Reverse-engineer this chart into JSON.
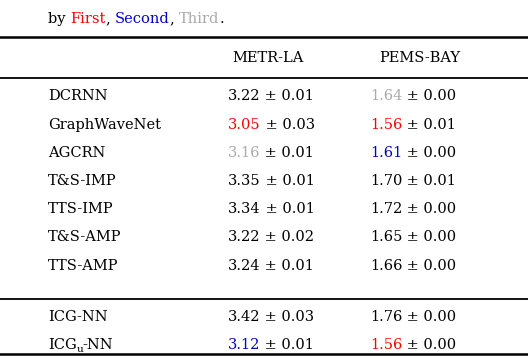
{
  "title_parts": [
    [
      "by ",
      "black"
    ],
    [
      "First",
      "#ff0000"
    ],
    [
      ", ",
      "black"
    ],
    [
      "Second",
      "#0000cc"
    ],
    [
      ", ",
      "black"
    ],
    [
      "Third",
      "#aaaaaa"
    ],
    [
      ".",
      "black"
    ]
  ],
  "col_headers": [
    "METR-LA",
    "PEMS-BAY"
  ],
  "rows": [
    {
      "label": "DCRNN",
      "label_sub": null,
      "metr_val": "3.22",
      "metr_pm": "0.01",
      "metr_color": "black",
      "pems_val": "1.64",
      "pems_pm": "0.00",
      "pems_color": "#aaaaaa",
      "group": 1
    },
    {
      "label": "GraphWaveNet",
      "label_sub": null,
      "metr_val": "3.05",
      "metr_pm": "0.03",
      "metr_color": "#ff0000",
      "pems_val": "1.56",
      "pems_pm": "0.01",
      "pems_color": "#ff0000",
      "group": 1
    },
    {
      "label": "AGCRN",
      "label_sub": null,
      "metr_val": "3.16",
      "metr_pm": "0.01",
      "metr_color": "#aaaaaa",
      "pems_val": "1.61",
      "pems_pm": "0.00",
      "pems_color": "#0000cc",
      "group": 1
    },
    {
      "label": "T&S-IMP",
      "label_sub": null,
      "metr_val": "3.35",
      "metr_pm": "0.01",
      "metr_color": "black",
      "pems_val": "1.70",
      "pems_pm": "0.01",
      "pems_color": "black",
      "group": 1
    },
    {
      "label": "TTS-IMP",
      "label_sub": null,
      "metr_val": "3.34",
      "metr_pm": "0.01",
      "metr_color": "black",
      "pems_val": "1.72",
      "pems_pm": "0.00",
      "pems_color": "black",
      "group": 1
    },
    {
      "label": "T&S-AMP",
      "label_sub": null,
      "metr_val": "3.22",
      "metr_pm": "0.02",
      "metr_color": "black",
      "pems_val": "1.65",
      "pems_pm": "0.00",
      "pems_color": "black",
      "group": 1
    },
    {
      "label": "TTS-AMP",
      "label_sub": null,
      "metr_val": "3.24",
      "metr_pm": "0.01",
      "metr_color": "black",
      "pems_val": "1.66",
      "pems_pm": "0.00",
      "pems_color": "black",
      "group": 1
    },
    {
      "label": "ICG-NN",
      "label_sub": null,
      "metr_val": "3.42",
      "metr_pm": "0.03",
      "metr_color": "black",
      "pems_val": "1.76",
      "pems_pm": "0.00",
      "pems_color": "black",
      "group": 2
    },
    {
      "label": "ICG",
      "label_sub": "u",
      "label_suffix": "-NN",
      "metr_val": "3.12",
      "metr_pm": "0.01",
      "metr_color": "#0000cc",
      "pems_val": "1.56",
      "pems_pm": "0.00",
      "pems_color": "#ff0000",
      "group": 2
    }
  ],
  "bg_color": "#ffffff",
  "font_size": 10.5,
  "title_font_size": 10.5,
  "header_font_size": 10.5,
  "figwidth": 5.28,
  "figheight": 3.62,
  "dpi": 100
}
